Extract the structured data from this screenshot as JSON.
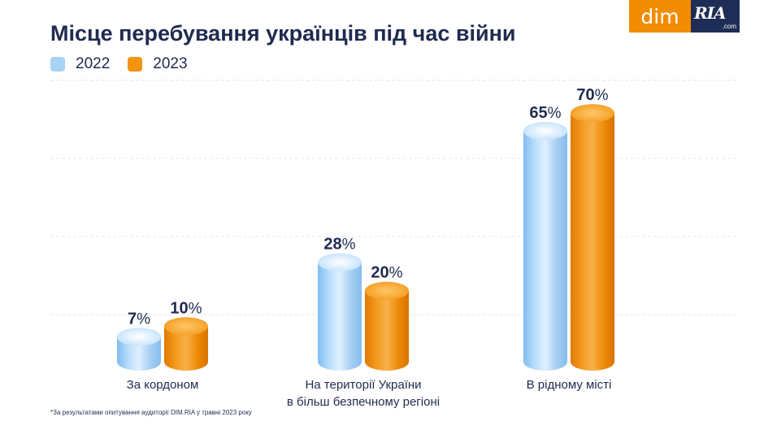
{
  "title": "Місце перебування українців під час війни",
  "brand": {
    "dim": "dim",
    "ria": "RIA",
    "ria_sub": ".com"
  },
  "footnote": "*За результатами опитування аудиторії DIM.RIA у травні 2023 року",
  "colors": {
    "2022": "#a9d3f5",
    "2023": "#f29312",
    "text": "#1f2b4f",
    "grid": "#e3e6ec"
  },
  "chart_data": {
    "type": "bar",
    "title": "Місце перебування українців під час війни",
    "categories": [
      [
        "За кордоном"
      ],
      [
        "На території України",
        "в більш безпечному регіоні"
      ],
      [
        "В рідному місті"
      ]
    ],
    "series": [
      {
        "name": "2022",
        "values": [
          7,
          28,
          65
        ],
        "labels": [
          "7%",
          "28%",
          "65%"
        ]
      },
      {
        "name": "2023",
        "values": [
          10,
          20,
          70
        ],
        "labels": [
          "10%",
          "20%",
          "70%"
        ]
      }
    ],
    "ylim": [
      0,
      84
    ],
    "grid": true,
    "legend": "top-left"
  }
}
